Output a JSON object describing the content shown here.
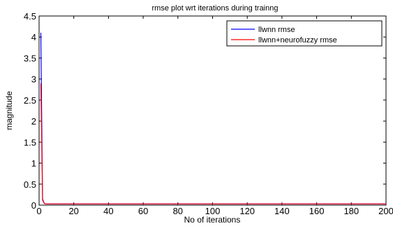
{
  "chart_data": {
    "type": "line",
    "title": "rmse plot wrt iterations during trainng",
    "xlabel": "No of iterations",
    "ylabel": "magnitude",
    "xlim": [
      0,
      200
    ],
    "ylim": [
      0,
      4.5
    ],
    "xticks": [
      0,
      20,
      40,
      60,
      80,
      100,
      120,
      140,
      160,
      180,
      200
    ],
    "yticks": [
      0,
      0.5,
      1,
      1.5,
      2,
      2.5,
      3,
      3.5,
      4,
      4.5
    ],
    "xtick_labels": [
      "0",
      "20",
      "40",
      "60",
      "80",
      "100",
      "120",
      "140",
      "160",
      "180",
      "200"
    ],
    "ytick_labels": [
      "0",
      "0.5",
      "1",
      "1.5",
      "2",
      "2.5",
      "3",
      "3.5",
      "4",
      "4.5"
    ],
    "grid": false,
    "legend_position": "top-right",
    "series": [
      {
        "name": "llwnn rmse",
        "color": "#0000ff",
        "x": [
          1,
          2,
          3,
          4,
          6,
          10,
          20,
          50,
          100,
          150,
          200
        ],
        "y": [
          4.1,
          0.12,
          0.04,
          0.03,
          0.03,
          0.03,
          0.03,
          0.03,
          0.03,
          0.03,
          0.03
        ]
      },
      {
        "name": "llwnn+neurofuzzy rmse",
        "color": "#ff0000",
        "x": [
          1,
          2,
          3,
          4,
          6,
          10,
          20,
          50,
          100,
          150,
          200
        ],
        "y": [
          2.9,
          0.15,
          0.04,
          0.03,
          0.03,
          0.03,
          0.03,
          0.03,
          0.03,
          0.03,
          0.03
        ]
      }
    ]
  }
}
